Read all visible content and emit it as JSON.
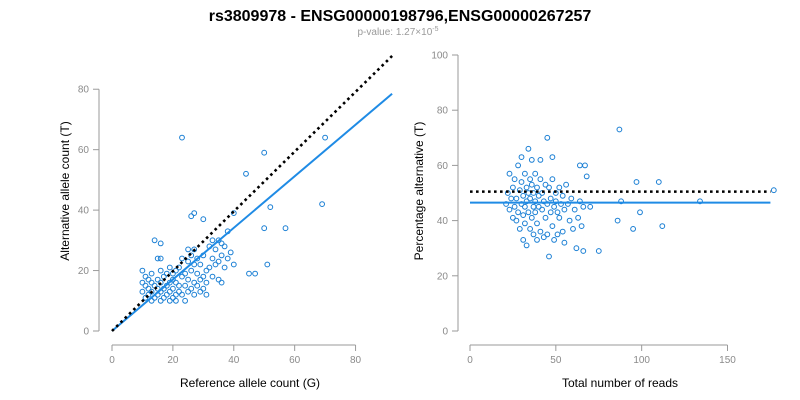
{
  "title": "rs3809978 - ENSG00000198796,ENSG00000267257",
  "subtitle": {
    "label": "p-value: 1.27×10",
    "exponent": "-5"
  },
  "colors": {
    "points": "#1a7fd4",
    "fit": "#1f8be5",
    "reference": "#000000",
    "axis": "#9a9a9a"
  },
  "chart_data": [
    {
      "type": "scatter",
      "xlabel": "Reference allele count (G)",
      "ylabel": "Alternative allele count (T)",
      "xlim": [
        0,
        90
      ],
      "ylim": [
        0,
        90
      ],
      "xticks": [
        0,
        20,
        40,
        60,
        80
      ],
      "yticks": [
        0,
        20,
        40,
        60,
        80
      ],
      "grid": false,
      "lines": [
        {
          "name": "fit",
          "style": "solid",
          "x": [
            0,
            92
          ],
          "y": [
            0,
            78.5
          ]
        },
        {
          "name": "reference",
          "style": "dotted",
          "x": [
            0,
            92
          ],
          "y": [
            0,
            91
          ]
        }
      ],
      "points": [
        [
          10,
          13
        ],
        [
          10,
          16
        ],
        [
          10,
          20
        ],
        [
          11,
          11
        ],
        [
          11,
          15
        ],
        [
          11,
          18
        ],
        [
          12,
          12
        ],
        [
          12,
          14
        ],
        [
          12,
          17
        ],
        [
          13,
          10
        ],
        [
          13,
          13
        ],
        [
          13,
          16
        ],
        [
          13,
          19
        ],
        [
          14,
          11
        ],
        [
          14,
          15
        ],
        [
          14,
          30
        ],
        [
          15,
          12
        ],
        [
          15,
          14
        ],
        [
          15,
          17
        ],
        [
          15,
          24
        ],
        [
          16,
          10
        ],
        [
          16,
          13
        ],
        [
          16,
          16
        ],
        [
          16,
          20
        ],
        [
          16,
          24
        ],
        [
          16,
          29
        ],
        [
          17,
          11
        ],
        [
          17,
          14
        ],
        [
          17,
          18
        ],
        [
          18,
          12
        ],
        [
          18,
          15
        ],
        [
          18,
          19
        ],
        [
          19,
          10
        ],
        [
          19,
          13
        ],
        [
          19,
          16
        ],
        [
          19,
          21
        ],
        [
          20,
          11
        ],
        [
          20,
          14
        ],
        [
          20,
          17
        ],
        [
          20,
          19
        ],
        [
          21,
          10
        ],
        [
          21,
          12
        ],
        [
          21,
          16
        ],
        [
          21,
          20
        ],
        [
          22,
          13
        ],
        [
          22,
          15
        ],
        [
          22,
          21
        ],
        [
          23,
          12
        ],
        [
          23,
          18
        ],
        [
          23,
          24
        ],
        [
          23,
          64
        ],
        [
          24,
          10
        ],
        [
          24,
          15
        ],
        [
          24,
          19
        ],
        [
          25,
          13
        ],
        [
          25,
          17
        ],
        [
          25,
          23
        ],
        [
          25,
          27
        ],
        [
          26,
          14
        ],
        [
          26,
          20
        ],
        [
          26,
          25
        ],
        [
          26,
          38
        ],
        [
          27,
          12
        ],
        [
          27,
          16
        ],
        [
          27,
          22
        ],
        [
          27,
          27
        ],
        [
          27,
          39
        ],
        [
          28,
          15
        ],
        [
          28,
          19
        ],
        [
          28,
          24
        ],
        [
          29,
          13
        ],
        [
          29,
          17
        ],
        [
          29,
          22
        ],
        [
          30,
          14
        ],
        [
          30,
          18
        ],
        [
          30,
          25
        ],
        [
          30,
          37
        ],
        [
          31,
          12
        ],
        [
          31,
          16
        ],
        [
          31,
          20
        ],
        [
          32,
          21
        ],
        [
          32,
          28
        ],
        [
          33,
          18
        ],
        [
          33,
          24
        ],
        [
          33,
          30
        ],
        [
          34,
          22
        ],
        [
          34,
          27
        ],
        [
          35,
          17
        ],
        [
          35,
          23
        ],
        [
          35,
          30
        ],
        [
          36,
          16
        ],
        [
          36,
          25
        ],
        [
          36,
          29
        ],
        [
          37,
          21
        ],
        [
          37,
          28
        ],
        [
          38,
          24
        ],
        [
          38,
          33
        ],
        [
          39,
          26
        ],
        [
          40,
          22
        ],
        [
          40,
          39
        ],
        [
          44,
          52
        ],
        [
          45,
          19
        ],
        [
          47,
          19
        ],
        [
          50,
          34
        ],
        [
          50,
          59
        ],
        [
          51,
          22
        ],
        [
          52,
          41
        ],
        [
          57,
          34
        ],
        [
          69,
          42
        ],
        [
          70,
          64
        ]
      ]
    },
    {
      "type": "scatter",
      "xlabel": "Total number of reads",
      "ylabel": "Percentage alternative (T)",
      "xlim": [
        0,
        180
      ],
      "ylim": [
        0,
        100
      ],
      "xticks": [
        0,
        50,
        100,
        150
      ],
      "yticks": [
        0,
        20,
        40,
        60,
        80,
        100
      ],
      "grid": false,
      "lines": [
        {
          "name": "fit",
          "style": "solid",
          "x": [
            0,
            175
          ],
          "y": [
            46.5,
            46.5
          ]
        },
        {
          "name": "reference",
          "style": "dotted",
          "x": [
            0,
            175
          ],
          "y": [
            50.5,
            50.5
          ]
        }
      ],
      "points": [
        [
          21,
          46
        ],
        [
          22,
          50
        ],
        [
          23,
          57
        ],
        [
          23,
          44
        ],
        [
          24,
          48
        ],
        [
          25,
          41
        ],
        [
          25,
          52
        ],
        [
          26,
          45
        ],
        [
          26,
          55
        ],
        [
          27,
          40
        ],
        [
          27,
          48
        ],
        [
          28,
          43
        ],
        [
          28,
          60
        ],
        [
          29,
          51
        ],
        [
          29,
          37
        ],
        [
          30,
          46
        ],
        [
          30,
          63
        ],
        [
          30,
          54
        ],
        [
          31,
          42
        ],
        [
          31,
          49
        ],
        [
          31,
          33
        ],
        [
          32,
          57
        ],
        [
          32,
          45
        ],
        [
          32,
          39
        ],
        [
          33,
          52
        ],
        [
          33,
          47
        ],
        [
          33,
          31
        ],
        [
          34,
          66
        ],
        [
          34,
          43
        ],
        [
          34,
          50
        ],
        [
          35,
          37
        ],
        [
          35,
          55
        ],
        [
          35,
          48
        ],
        [
          36,
          41
        ],
        [
          36,
          53
        ],
        [
          36,
          62
        ],
        [
          37,
          45
        ],
        [
          37,
          35
        ],
        [
          37,
          50
        ],
        [
          38,
          47
        ],
        [
          38,
          57
        ],
        [
          38,
          43
        ],
        [
          39,
          39
        ],
        [
          39,
          52
        ],
        [
          39,
          33
        ],
        [
          40,
          45
        ],
        [
          40,
          49
        ],
        [
          41,
          55
        ],
        [
          41,
          36
        ],
        [
          41,
          62
        ],
        [
          42,
          44
        ],
        [
          42,
          50
        ],
        [
          43,
          47
        ],
        [
          43,
          34
        ],
        [
          44,
          53
        ],
        [
          44,
          41
        ],
        [
          45,
          70
        ],
        [
          45,
          46
        ],
        [
          45,
          35
        ],
        [
          46,
          52
        ],
        [
          46,
          27
        ],
        [
          47,
          43
        ],
        [
          47,
          48
        ],
        [
          48,
          38
        ],
        [
          48,
          55
        ],
        [
          48,
          63
        ],
        [
          49,
          45
        ],
        [
          49,
          33
        ],
        [
          50,
          47
        ],
        [
          50,
          50
        ],
        [
          51,
          35
        ],
        [
          51,
          43
        ],
        [
          52,
          52
        ],
        [
          52,
          41
        ],
        [
          53,
          46
        ],
        [
          54,
          36
        ],
        [
          54,
          49
        ],
        [
          55,
          44
        ],
        [
          55,
          32
        ],
        [
          56,
          53
        ],
        [
          57,
          46
        ],
        [
          58,
          40
        ],
        [
          59,
          48
        ],
        [
          60,
          37
        ],
        [
          61,
          44
        ],
        [
          62,
          30
        ],
        [
          63,
          41
        ],
        [
          64,
          60
        ],
        [
          64,
          47
        ],
        [
          65,
          38
        ],
        [
          66,
          45
        ],
        [
          66,
          29
        ],
        [
          67,
          60
        ],
        [
          68,
          56
        ],
        [
          70,
          45
        ],
        [
          75,
          29
        ],
        [
          86,
          40
        ],
        [
          87,
          73
        ],
        [
          88,
          47
        ],
        [
          95,
          37
        ],
        [
          97,
          54
        ],
        [
          99,
          43
        ],
        [
          110,
          54
        ],
        [
          112,
          38
        ],
        [
          134,
          47
        ],
        [
          177,
          51
        ]
      ]
    }
  ]
}
